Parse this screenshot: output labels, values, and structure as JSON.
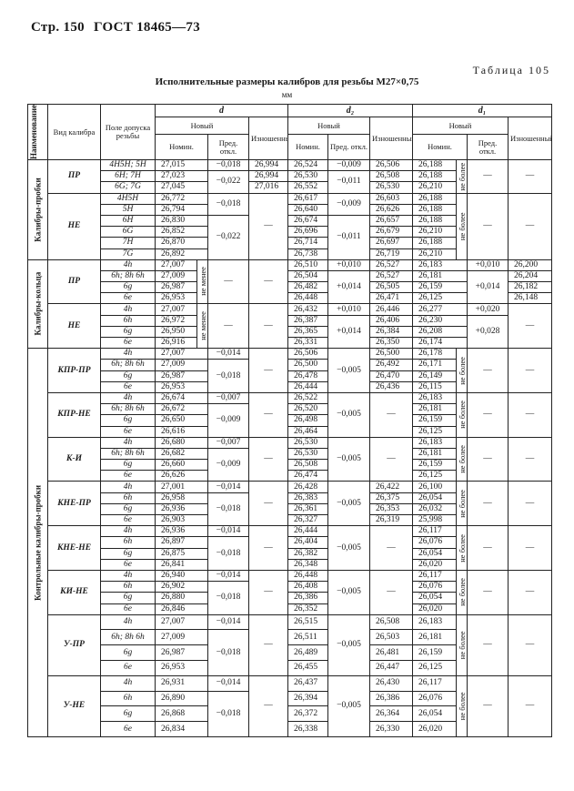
{
  "page_header": {
    "page": "Стр. 150",
    "standard": "ГОСТ 18465—73"
  },
  "table_number": "Таблица 105",
  "title": "Исполнительные размеры калибров для резьбы M27×0,75",
  "unit": "мм",
  "headers": {
    "name": "Наименование",
    "gauge_type": "Вид калибра",
    "tolerance_field": "Поле допуска резьбы",
    "d": "d",
    "d2": "d₂",
    "d1": "d₁",
    "new": "Новый",
    "worn": "Изношенный",
    "nominal": "Номин.",
    "deviation": "Пред. откл."
  },
  "columns": [
    "name",
    "gauge_type",
    "tolerance_field",
    "d_nominal",
    "d_note",
    "d_deviation",
    "d_worn",
    "d2_nominal",
    "d2_deviation",
    "d2_worn",
    "d1_nominal",
    "d1_note",
    "d1_deviation",
    "d1_worn"
  ],
  "rows": [
    [
      "Калибры-пробки",
      "ПР",
      "4H5H; 5H",
      "27,015",
      "<",
      "−0,018",
      "26,994",
      "26,524",
      "−0,009",
      "26,506",
      "26,188",
      "не более",
      "—",
      "—"
    ],
    [
      null,
      null,
      "6H; 7H",
      "27,023",
      "<",
      "−0,022",
      "26,994",
      "26,530",
      "−0,011",
      "26,508",
      "26,188",
      null,
      null,
      null
    ],
    [
      null,
      null,
      "6G; 7G",
      "27,045",
      "<",
      null,
      "27,016",
      "26,552",
      null,
      "26,530",
      "26,210",
      null,
      null,
      null
    ],
    [
      null,
      "НЕ",
      "4H5H",
      "26,772",
      "<",
      "−0,018",
      "—",
      "26,617",
      "−0,009",
      "26,603",
      "26,188",
      "не более",
      "—",
      "—"
    ],
    [
      null,
      null,
      "5H",
      "26,794",
      "<",
      null,
      null,
      "26,640",
      null,
      "26,626",
      "26,188",
      null,
      null,
      null
    ],
    [
      null,
      null,
      "6H",
      "26,830",
      "<",
      "−0,022",
      null,
      "26,674",
      "−0,011",
      "26,657",
      "26,188",
      null,
      null,
      null
    ],
    [
      null,
      null,
      "6G",
      "26,852",
      "<",
      null,
      null,
      "26,696",
      null,
      "26,679",
      "26,210",
      null,
      null,
      null
    ],
    [
      null,
      null,
      "7H",
      "26,870",
      "<",
      null,
      null,
      "26,714",
      null,
      "26,697",
      "26,188",
      null,
      null,
      null
    ],
    [
      null,
      null,
      "7G",
      "26,892",
      "<",
      null,
      null,
      "26,738",
      null,
      "26,719",
      "26,210",
      null,
      null,
      null
    ],
    [
      "Калибры-кольца",
      "ПР",
      "4h",
      "27,007",
      "не менее",
      "—",
      "—",
      "26,510",
      "+0,010",
      "26,527",
      "26,183",
      "<",
      "+0,010",
      "26,200"
    ],
    [
      null,
      null,
      "6h; 8h 6h",
      "27,009",
      null,
      null,
      null,
      "26,504",
      "+0,014",
      "26,527",
      "26,181",
      "<",
      "+0,014",
      "26,204"
    ],
    [
      null,
      null,
      "6g",
      "26,987",
      null,
      null,
      null,
      "26,482",
      null,
      "26,505",
      "26,159",
      "<",
      null,
      "26,182"
    ],
    [
      null,
      null,
      "6e",
      "26,953",
      null,
      null,
      null,
      "26,448",
      null,
      "26,471",
      "26,125",
      "<",
      null,
      "26,148"
    ],
    [
      null,
      "НЕ",
      "4h",
      "27,007",
      "не менее",
      "—",
      "—",
      "26,432",
      "+0,010",
      "26,446",
      "26,277",
      "<",
      "+0,020",
      "—"
    ],
    [
      null,
      null,
      "6h",
      "26,972",
      null,
      null,
      null,
      "26,387",
      "+0,014",
      "26,406",
      "26,230",
      "<",
      "+0,028",
      null
    ],
    [
      null,
      null,
      "6g",
      "26,950",
      null,
      null,
      null,
      "26,365",
      null,
      "26,384",
      "26,208",
      "<",
      null,
      null
    ],
    [
      null,
      null,
      "6e",
      "26,916",
      null,
      null,
      null,
      "26,331",
      null,
      "26,350",
      "26,174",
      "<",
      null,
      null
    ],
    [
      "Контрольные калибры-пробки",
      "КПР-ПР",
      "4h",
      "27,007",
      "<",
      "−0,014",
      "—",
      "26,506",
      "−0,005",
      "26,500",
      "26,178",
      "не более",
      "—",
      "—"
    ],
    [
      null,
      null,
      "6h; 8h 6h",
      "27,009",
      "<",
      "−0,018",
      null,
      "26,500",
      null,
      "26,492",
      "26,171",
      null,
      null,
      null
    ],
    [
      null,
      null,
      "6g",
      "26,987",
      "<",
      null,
      null,
      "26,478",
      null,
      "26,470",
      "26,149",
      null,
      null,
      null
    ],
    [
      null,
      null,
      "6e",
      "26,953",
      "<",
      null,
      null,
      "26,444",
      null,
      "26,436",
      "26,115",
      null,
      null,
      null
    ],
    [
      null,
      "КПР-НЕ",
      "4h",
      "26,674",
      "<",
      "−0,007",
      "—",
      "26,522",
      "−0,005",
      "—",
      "26,183",
      "не более",
      "—",
      "—"
    ],
    [
      null,
      null,
      "6h; 8h 6h",
      "26,672",
      "<",
      "−0,009",
      null,
      "26,520",
      null,
      null,
      "26,181",
      null,
      null,
      null
    ],
    [
      null,
      null,
      "6g",
      "26,650",
      "<",
      null,
      null,
      "26,498",
      null,
      null,
      "26,159",
      null,
      null,
      null
    ],
    [
      null,
      null,
      "6e",
      "26,616",
      "<",
      null,
      null,
      "26,464",
      null,
      null,
      "26,125",
      null,
      null,
      null
    ],
    [
      null,
      "К-И",
      "4h",
      "26,680",
      "<",
      "−0,007",
      "—",
      "26,530",
      "−0,005",
      "—",
      "26,183",
      "не более",
      "—",
      "—"
    ],
    [
      null,
      null,
      "6h; 8h 6h",
      "26,682",
      "<",
      "−0,009",
      null,
      "26,530",
      null,
      null,
      "26,181",
      null,
      null,
      null
    ],
    [
      null,
      null,
      "6g",
      "26,660",
      "<",
      null,
      null,
      "26,508",
      null,
      null,
      "26,159",
      null,
      null,
      null
    ],
    [
      null,
      null,
      "6e",
      "26,626",
      "<",
      null,
      null,
      "26,474",
      null,
      null,
      "26,125",
      null,
      null,
      null
    ],
    [
      null,
      "КНЕ-ПР",
      "4h",
      "27,001",
      "<",
      "−0,014",
      "—",
      "26,428",
      "−0,005",
      "26,422",
      "26,100",
      "не более",
      "—",
      "—"
    ],
    [
      null,
      null,
      "6h",
      "26,958",
      "<",
      "−0,018",
      null,
      "26,383",
      null,
      "26,375",
      "26,054",
      null,
      null,
      null
    ],
    [
      null,
      null,
      "6g",
      "26,936",
      "<",
      null,
      null,
      "26,361",
      null,
      "26,353",
      "26,032",
      null,
      null,
      null
    ],
    [
      null,
      null,
      "6e",
      "26,903",
      "<",
      null,
      null,
      "26,327",
      null,
      "26,319",
      "25,998",
      null,
      null,
      null
    ],
    [
      null,
      "КНЕ-НЕ",
      "4h",
      "26,936",
      "<",
      "−0,014",
      "—",
      "26,444",
      "−0,005",
      "—",
      "26,117",
      "не более",
      "—",
      "—"
    ],
    [
      null,
      null,
      "6h",
      "26,897",
      "<",
      "−0,018",
      null,
      "26,404",
      null,
      null,
      "26,076",
      null,
      null,
      null
    ],
    [
      null,
      null,
      "6g",
      "26,875",
      "<",
      null,
      null,
      "26,382",
      null,
      null,
      "26,054",
      null,
      null,
      null
    ],
    [
      null,
      null,
      "6e",
      "26,841",
      "<",
      null,
      null,
      "26,348",
      null,
      null,
      "26,020",
      null,
      null,
      null
    ],
    [
      null,
      "КИ-НЕ",
      "4h",
      "26,940",
      "<",
      "−0,014",
      "—",
      "26,448",
      "−0,005",
      "—",
      "26,117",
      "не более",
      "—",
      "—"
    ],
    [
      null,
      null,
      "6h",
      "26,902",
      "<",
      "−0,018",
      null,
      "26,408",
      null,
      null,
      "26,076",
      null,
      null,
      null
    ],
    [
      null,
      null,
      "6g",
      "26,880",
      "<",
      null,
      null,
      "26,386",
      null,
      null,
      "26,054",
      null,
      null,
      null
    ],
    [
      null,
      null,
      "6e",
      "26,846",
      "<",
      null,
      null,
      "26,352",
      null,
      null,
      "26,020",
      null,
      null,
      null
    ],
    [
      null,
      "У-ПР",
      "4h",
      "27,007",
      "<",
      "−0,014",
      "—",
      "26,515",
      "−0,005",
      "26,508",
      "26,183",
      "не более",
      "—",
      "—"
    ],
    [
      null,
      null,
      "6h; 8h 6h",
      "27,009",
      "<",
      "−0,018",
      null,
      "26,511",
      null,
      "26,503",
      "26,181",
      null,
      null,
      null
    ],
    [
      null,
      null,
      "6g",
      "26,987",
      "<",
      null,
      null,
      "26,489",
      null,
      "26,481",
      "26,159",
      null,
      null,
      null
    ],
    [
      null,
      null,
      "6e",
      "26,953",
      "<",
      null,
      null,
      "26,455",
      null,
      "26,447",
      "26,125",
      null,
      null,
      null
    ],
    [
      null,
      "У-НЕ",
      "4h",
      "26,931",
      "<",
      "−0,014",
      "—",
      "26,437",
      "−0,005",
      "26,430",
      "26,117",
      "не более",
      "—",
      "—"
    ],
    [
      null,
      null,
      "6h",
      "26,890",
      "<",
      "−0,018",
      null,
      "26,394",
      null,
      "26,386",
      "26,076",
      null,
      null,
      null
    ],
    [
      null,
      null,
      "6g",
      "26,868",
      "<",
      null,
      null,
      "26,372",
      null,
      "26,364",
      "26,054",
      null,
      null,
      null
    ],
    [
      null,
      null,
      "6e",
      "26,834",
      "<",
      null,
      null,
      "26,338",
      null,
      "26,330",
      "26,020",
      null,
      null,
      null
    ]
  ]
}
